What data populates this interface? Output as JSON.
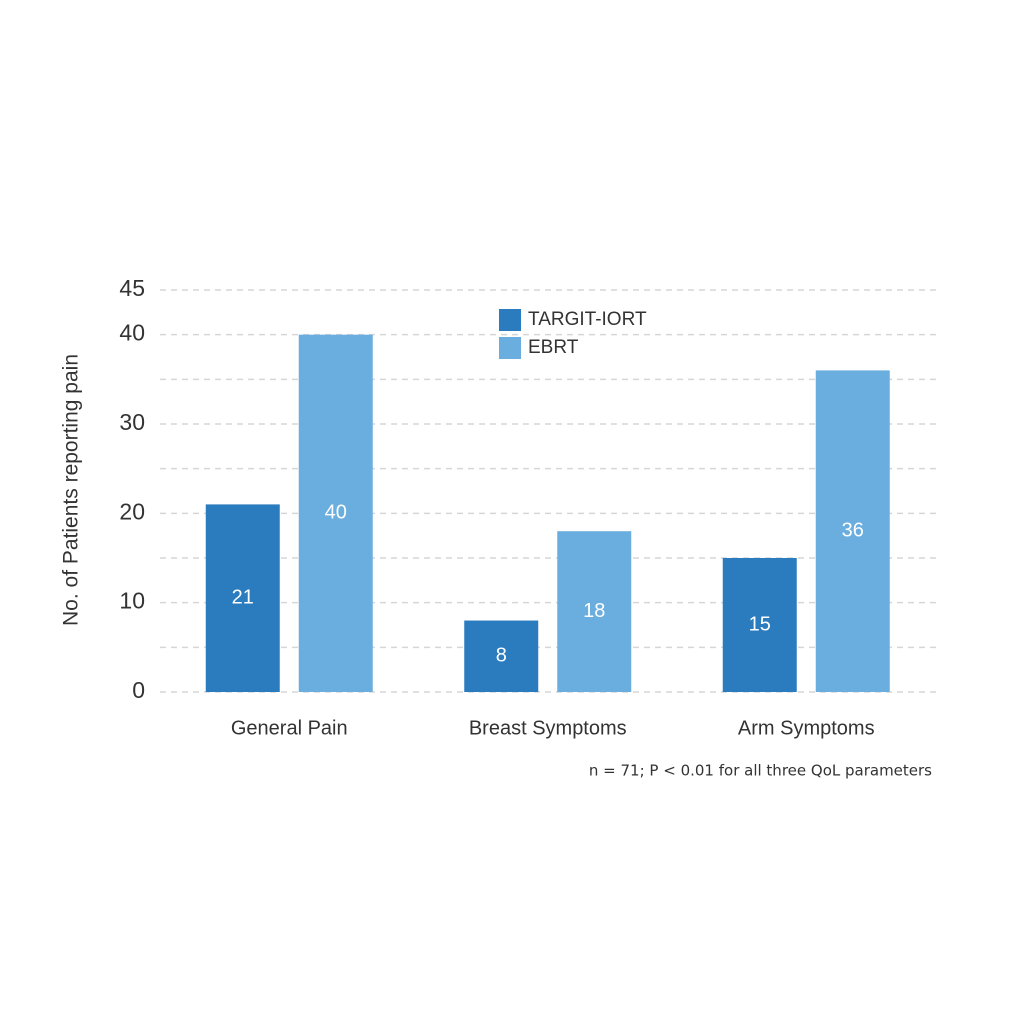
{
  "chart_data": {
    "type": "bar",
    "y_axis_label": "No. of Patients reporting pain",
    "categories": [
      "General Pain",
      "Breast Symptoms",
      "Arm Symptoms"
    ],
    "series": [
      {
        "name": "TARGIT-IORT",
        "color": "#2b7bbf",
        "values": [
          21,
          8,
          15
        ]
      },
      {
        "name": "EBRT",
        "color": "#6aaee0",
        "values": [
          40,
          18,
          36
        ]
      }
    ],
    "ylim": [
      0,
      45
    ],
    "yticks": [
      0,
      10,
      20,
      30,
      40,
      45
    ],
    "minor_gridlines": [
      5,
      15,
      25,
      35
    ],
    "grid": true,
    "legend_position": "top",
    "footnote": "n = 71; P < 0.01 for all three QoL parameters"
  }
}
